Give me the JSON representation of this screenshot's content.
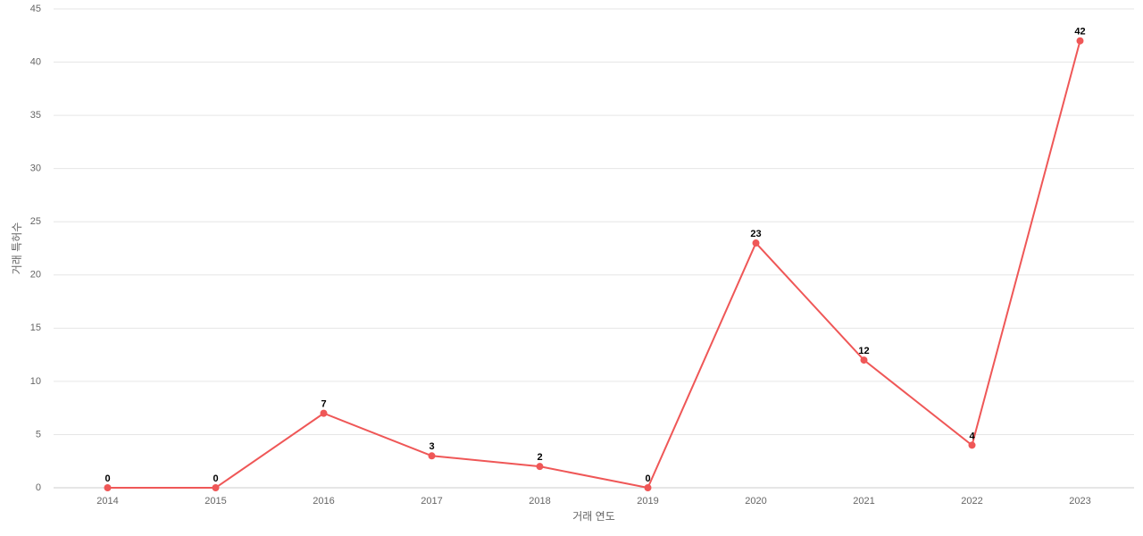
{
  "chart_data": {
    "type": "line",
    "x_label": "거래 연도",
    "y_label": "거래 특허수",
    "categories": [
      "2014",
      "2015",
      "2016",
      "2017",
      "2018",
      "2019",
      "2020",
      "2021",
      "2022",
      "2023"
    ],
    "values": [
      0,
      0,
      7,
      3,
      2,
      0,
      23,
      12,
      4,
      42
    ],
    "color": "#ef5757",
    "ylim": [
      0,
      45
    ],
    "yticks": [
      0,
      5,
      10,
      15,
      20,
      25,
      30,
      35,
      40,
      45
    ],
    "grid": true
  }
}
